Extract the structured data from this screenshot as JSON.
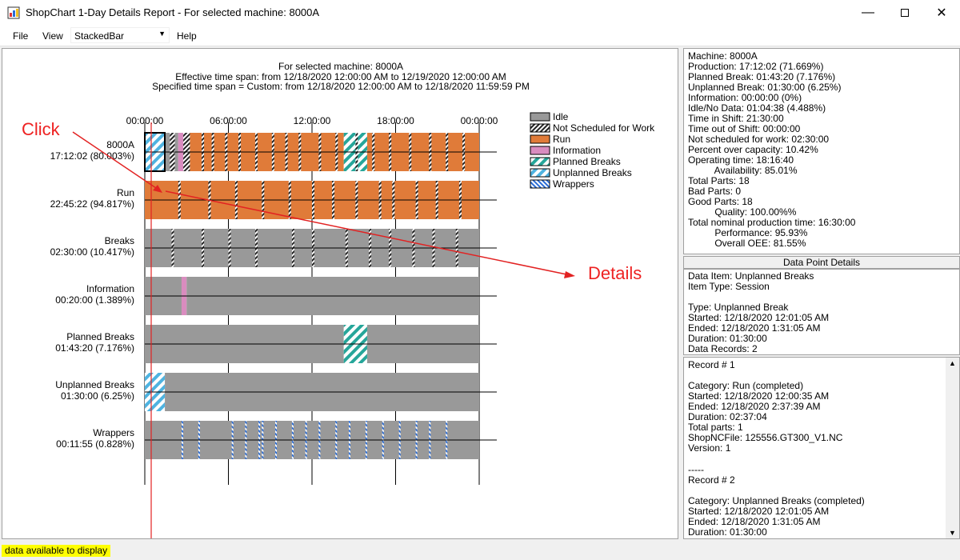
{
  "window": {
    "title": "ShopChart 1-Day Details Report - For selected machine: 8000A"
  },
  "menu": {
    "file": "File",
    "view": "View",
    "combo_value": "StackedBar",
    "help": "Help"
  },
  "chart": {
    "header": [
      "For selected machine: 8000A",
      "Effective time span: from 12/18/2020 12:00:00 AM to 12/19/2020 12:00:00 AM",
      "Specified time span = Custom: from 12/18/2020 12:00:00 AM to 12/18/2020 11:59:59 PM"
    ],
    "time_ticks": [
      "00:00:00",
      "06:00:00",
      "12:00:00",
      "18:00:00",
      "00:00:00"
    ],
    "rows": [
      {
        "name": "8000A",
        "value": "17:12:02 (80.003%)"
      },
      {
        "name": "Run",
        "value": "22:45:22 (94.817%)"
      },
      {
        "name": "Breaks",
        "value": "02:30:00 (10.417%)"
      },
      {
        "name": "Information",
        "value": "00:20:00 (1.389%)"
      },
      {
        "name": "Planned Breaks",
        "value": "01:43:20 (7.176%)"
      },
      {
        "name": "Unplanned Breaks",
        "value": "01:30:00 (6.25%)"
      },
      {
        "name": "Wrappers",
        "value": "00:11:55 (0.828%)"
      }
    ],
    "legend": [
      {
        "label": "Idle",
        "kind": "idle"
      },
      {
        "label": "Not Scheduled for Work",
        "kind": "notsched"
      },
      {
        "label": "Run",
        "kind": "run"
      },
      {
        "label": "Information",
        "kind": "info"
      },
      {
        "label": "Planned Breaks",
        "kind": "planned"
      },
      {
        "label": "Unplanned Breaks",
        "kind": "unplanned"
      },
      {
        "label": "Wrappers",
        "kind": "wrappers"
      }
    ],
    "colors": {
      "run": "#e07b39",
      "idle": "#999999",
      "info": "#d98cbf",
      "planned": "#26a69a",
      "unplanned": "#4fb3e0",
      "annotation": "#e22222"
    }
  },
  "annotations": {
    "click": "Click",
    "details": "Details"
  },
  "summary": [
    "Machine: 8000A",
    "Production: 17:12:02 (71.669%)",
    "Planned Break: 01:43:20 (7.176%)",
    "Unplanned Break: 01:30:00 (6.25%)",
    "Information: 00:00:00 (0%)",
    "Idle/No Data: 01:04:38 (4.488%)",
    "Time in Shift: 21:30:00",
    "Time out of Shift: 00:00:00",
    "Not scheduled for work: 02:30:00",
    "Percent over capacity: 10.42%",
    "Operating time: 18:16:40",
    "          Availability: 85.01%",
    "Total Parts: 18",
    "Bad Parts: 0",
    "Good Parts: 18",
    "          Quality: 100.00%%",
    "Total nominal production time: 16:30:00",
    "          Performance: 95.93%",
    "          Overall OEE: 81.55%"
  ],
  "details_header": "Data Point Details",
  "details": [
    "Data Item: Unplanned Breaks",
    "Item Type: Session",
    "",
    "Type: Unplanned Break",
    "Started: 12/18/2020 12:01:05 AM",
    "Ended: 12/18/2020 1:31:05 AM",
    "Duration: 01:30:00",
    "Data Records: 2"
  ],
  "records": [
    "Record # 1",
    "",
    "Category: Run (completed)",
    "Started: 12/18/2020 12:00:35 AM",
    "Ended: 12/18/2020 2:37:39 AM",
    "Duration: 02:37:04",
    "Total parts: 1",
    "ShopNCFile: 125556.GT300_V1.NC",
    "Version: 1",
    "",
    "-----",
    "Record # 2",
    "",
    "Category: Unplanned Breaks (completed)",
    "Started: 12/18/2020 12:01:05 AM",
    "Ended: 12/18/2020 1:31:05 AM",
    "Duration: 01:30:00"
  ],
  "status": "data available to display"
}
